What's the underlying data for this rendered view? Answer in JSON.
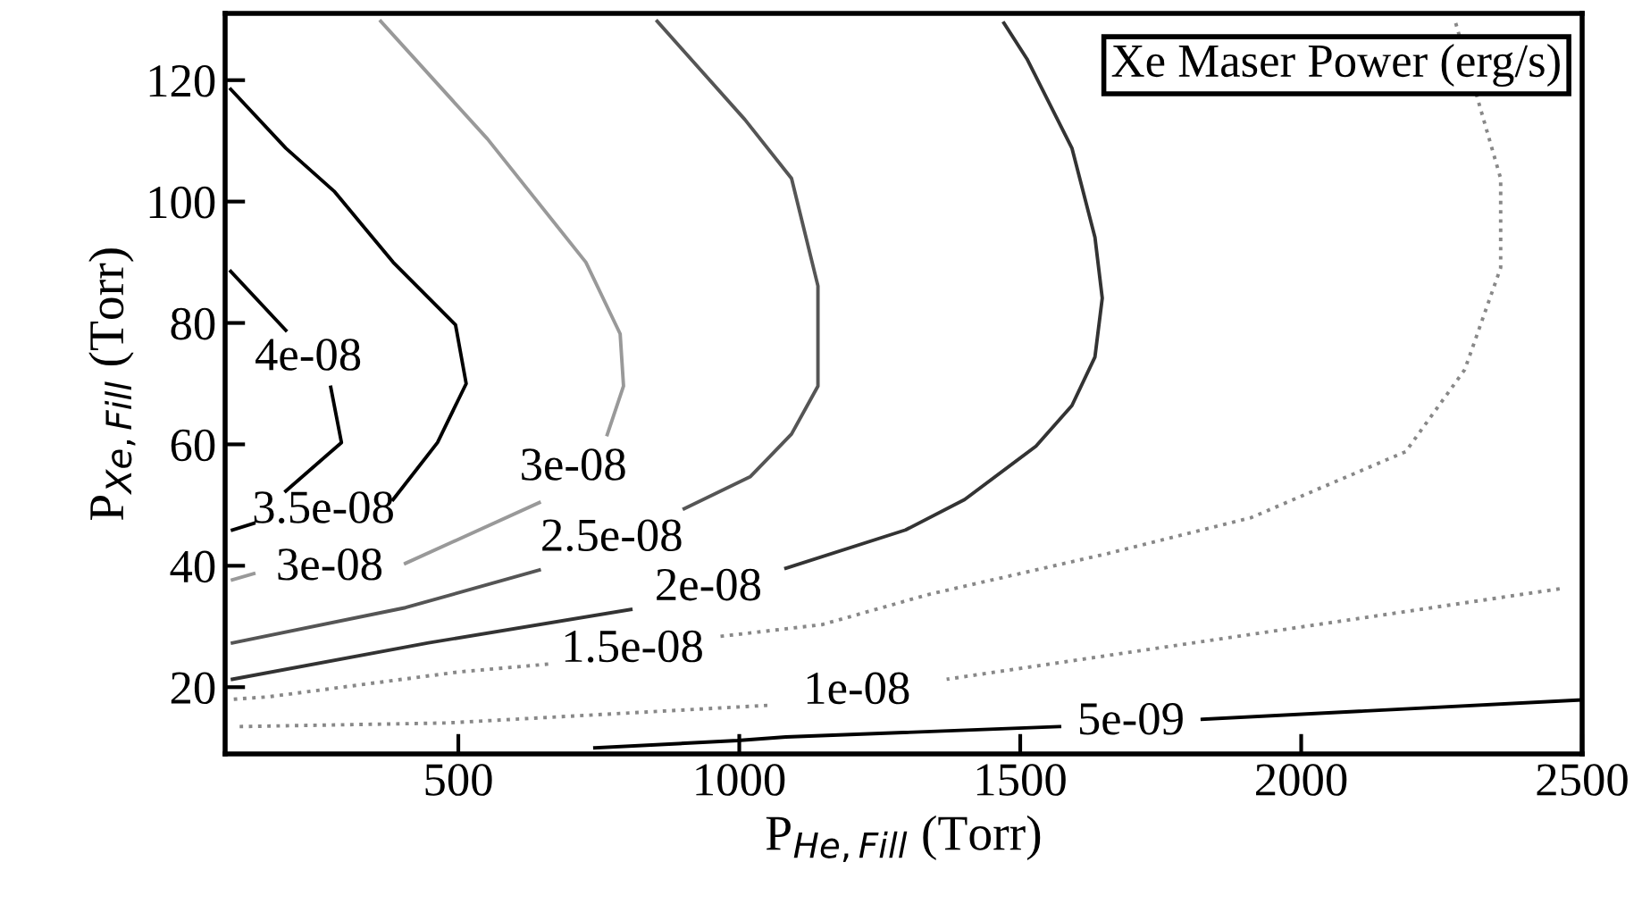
{
  "chart_data": {
    "type": "line",
    "xlabel": "P$_{He,Fill}$ (Torr)",
    "ylabel": "P$_{Xe,Fill}$ (Torr)",
    "xlim": [
      85,
      2500
    ],
    "ylim": [
      9,
      131
    ],
    "xticks": [
      500,
      1000,
      1500,
      2000,
      2500
    ],
    "yticks": [
      20,
      40,
      60,
      80,
      100,
      120
    ],
    "grid": false,
    "legend": false,
    "marker": "none",
    "series": [
      {
        "name": "3.5e-08",
        "color": "#000000",
        "line_style": "solid",
        "x": [
          98,
          136,
          null,
          384,
          463,
          514,
          495,
          384,
          279,
          193,
          95
        ],
        "values": [
          45.9,
          47.0,
          null,
          50.9,
          60.3,
          70.0,
          79.7,
          90.0,
          101.7,
          108.8,
          118.5
        ]
      },
      {
        "name": "4e-08",
        "color": "#000000",
        "line_style": "solid",
        "x": [
          95,
          193,
          null,
          273,
          292,
          193
        ],
        "values": [
          88.5,
          78.8,
          null,
          69.4,
          60.3,
          52.3
        ]
      },
      {
        "name": "3e-08",
        "color": "#999999",
        "line_style": "solid",
        "x": [
          362,
          552,
          727,
          788,
          794,
          765,
          null,
          644,
          406,
          null,
          136,
          98
        ],
        "values": [
          129.7,
          110.3,
          90.0,
          78.2,
          69.6,
          61.6,
          null,
          50.4,
          40.4,
          null,
          38.7,
          37.7
        ]
      },
      {
        "name": "2.5e-08",
        "color": "#555555",
        "line_style": "solid",
        "x": [
          854,
          1010,
          1093,
          1140,
          1140,
          1093,
          1020,
          902,
          null,
          644,
          406,
          98
        ],
        "values": [
          129.7,
          113.5,
          103.8,
          86.1,
          69.6,
          61.7,
          54.7,
          49.4,
          null,
          39.3,
          33.1,
          27.3
        ]
      },
      {
        "name": "2e-08",
        "color": "#333333",
        "line_style": "solid",
        "x": [
          1471,
          1512,
          1592,
          1633,
          1646,
          1633,
          1592,
          1528,
          1401,
          1296,
          1083,
          null,
          807,
          447,
          98
        ],
        "values": [
          129.4,
          123.5,
          108.8,
          94.1,
          84.1,
          74.4,
          66.4,
          59.7,
          50.9,
          45.9,
          39.6,
          null,
          32.8,
          27.3,
          21.3
        ]
      },
      {
        "name": "1.5e-08",
        "color": "#888888",
        "line_style": "dotted",
        "x": [
          2275,
          2355,
          2355,
          2291,
          2186,
          1910,
          1655,
          1338,
          1147,
          960,
          null,
          660,
          500,
          161,
          98
        ],
        "values": [
          129.4,
          103.8,
          89.1,
          72.3,
          58.8,
          47.9,
          42.0,
          35.3,
          30.3,
          28.3,
          null,
          23.8,
          22.5,
          18.4,
          18.0
        ]
      },
      {
        "name": "1e-08",
        "color": "#888888",
        "line_style": "dotted",
        "x": [
          2460,
          1369,
          null,
          1050,
          479,
          107
        ],
        "values": [
          36.2,
          21.3,
          null,
          17.0,
          14.1,
          13.5
        ]
      },
      {
        "name": "5e-09",
        "color": "#000000",
        "line_style": "solid",
        "x": [
          743,
          997,
          1083,
          1570,
          null,
          1824,
          2498
        ],
        "values": [
          10.0,
          11.2,
          11.8,
          13.5,
          null,
          14.7,
          17.9
        ]
      }
    ],
    "annotations": [
      "Xe Maser Power (erg/s)"
    ]
  }
}
